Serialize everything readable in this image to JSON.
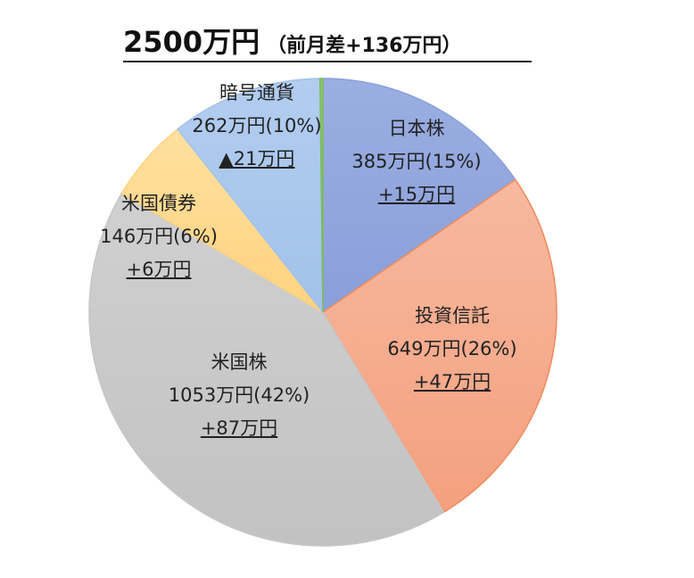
{
  "chart_data": {
    "type": "pie",
    "title": "2500万円",
    "subtitle": "（前月差+136万円）",
    "start": "top",
    "direction": "clockwise",
    "slices": [
      {
        "name": "日本株",
        "value": 385,
        "value_label": "385万円(15%)",
        "change": "+15万円",
        "color": "#9aaee2",
        "color2": "#8a9fd9",
        "stroke": "#8aa0dc"
      },
      {
        "name": "投資信託",
        "value": 649,
        "value_label": "649万円(26%)",
        "change": "+47万円",
        "color": "#f7b9a0",
        "color2": "#f4a07e",
        "stroke": "#f08a5a"
      },
      {
        "name": "米国株",
        "value": 1053,
        "value_label": "1053万円(42%)",
        "change": "+87万円",
        "color": "#d0d0d0",
        "color2": "#c2c2c2",
        "stroke": "#c6c6c6"
      },
      {
        "name": "米国債券",
        "value": 146,
        "value_label": "146万円(6%)",
        "change": "+6万円",
        "color": "#ffe0a0",
        "color2": "#ffd27e",
        "stroke": "#ffd27e"
      },
      {
        "name": "暗号通貨",
        "value": 262,
        "value_label": "262万円(10%)",
        "change": "▲21万円",
        "color": "#b2cdef",
        "color2": "#a2c2ea",
        "stroke": "#a2c2ea"
      },
      {
        "name": "",
        "value": 5,
        "value_label": "",
        "change": "",
        "color": "#8cc870",
        "color2": "#7cbc5e",
        "stroke": "#7cbc5e"
      }
    ]
  }
}
